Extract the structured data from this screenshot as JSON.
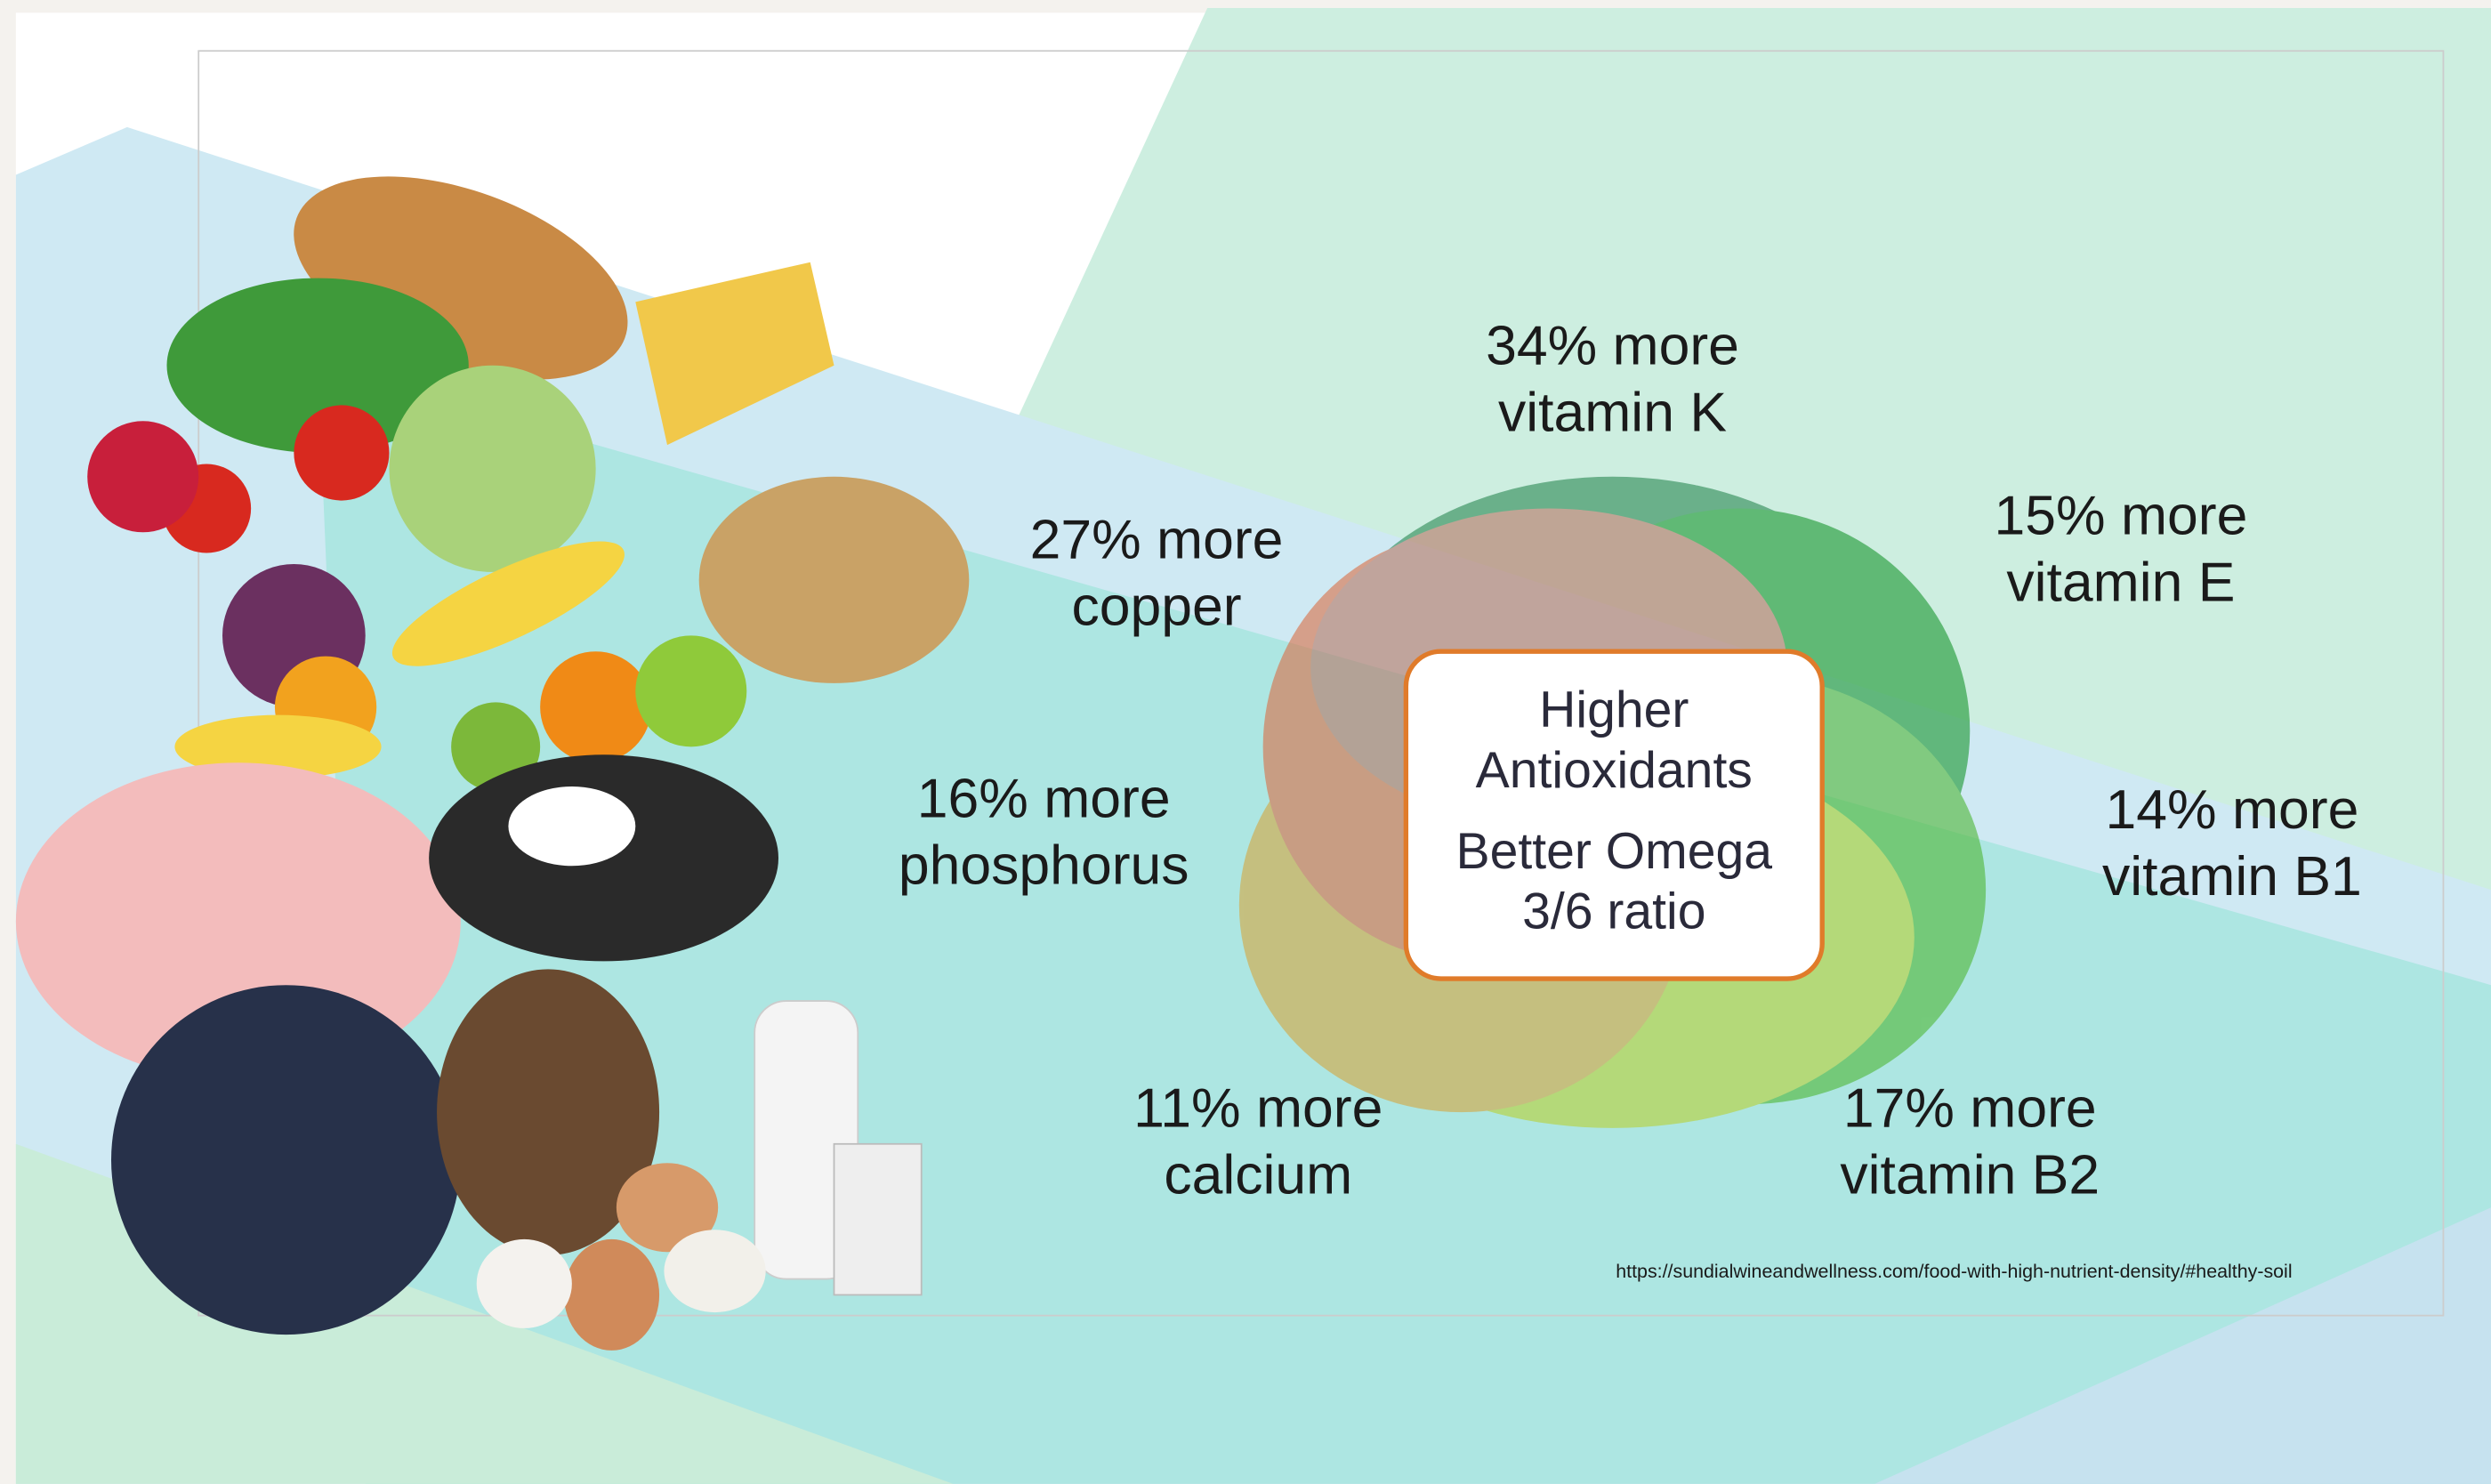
{
  "labels": [
    {
      "lines": [
        "34% more",
        "vitamin K"
      ]
    },
    {
      "lines": [
        "15% more",
        "vitamin E"
      ]
    },
    {
      "lines": [
        "14% more",
        "vitamin B1"
      ]
    },
    {
      "lines": [
        "17% more",
        "vitamin B2"
      ]
    },
    {
      "lines": [
        "11% more",
        "calcium"
      ]
    },
    {
      "lines": [
        "16% more",
        "phosphorus"
      ]
    },
    {
      "lines": [
        "27% more",
        "copper"
      ]
    }
  ],
  "center": {
    "lines": [
      "Higher",
      "Antioxidants",
      "Better Omega",
      "3/6 ratio"
    ]
  },
  "source": "https://sundialwineandwellness.com/food-with-high-nutrient-density/#healthy-soil"
}
